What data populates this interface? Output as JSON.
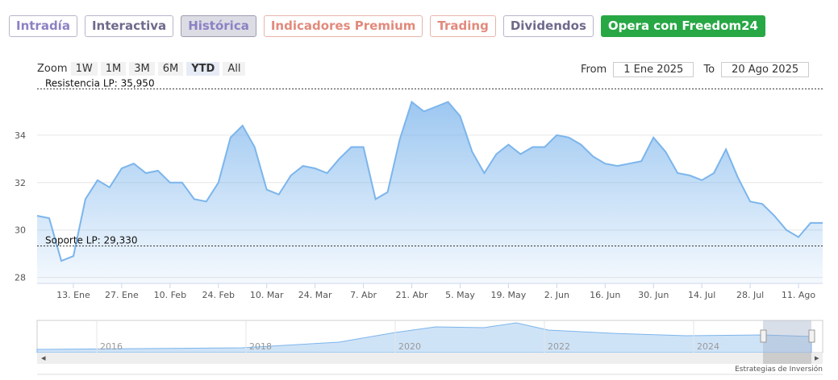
{
  "tabs": [
    "Intradía",
    "Interactiva",
    "Histórica",
    "Indicadores Premium",
    "Trading",
    "Dividendos",
    "Opera con Freedom24"
  ],
  "range_selector": {
    "zoom_label": "Zoom",
    "buttons": [
      "1W",
      "1M",
      "3M",
      "6M",
      "YTD",
      "All"
    ],
    "from_label": "From",
    "from_value": "1 Ene 2025",
    "to_label": "To",
    "to_value": "20 Ago 2025"
  },
  "chart_data": {
    "type": "area",
    "categories": [
      null,
      null,
      null,
      "13. Ene",
      null,
      null,
      null,
      "27. Ene",
      null,
      null,
      null,
      "10. Feb",
      null,
      null,
      null,
      "24. Feb",
      null,
      null,
      null,
      "10. Mar",
      null,
      null,
      null,
      "24. Mar",
      null,
      null,
      null,
      "7. Abr",
      null,
      null,
      null,
      "21. Abr",
      null,
      null,
      null,
      "5. May",
      null,
      null,
      null,
      "19. May",
      null,
      null,
      null,
      "2. Jun",
      null,
      null,
      null,
      "16. Jun",
      null,
      null,
      null,
      "30. Jun",
      null,
      null,
      null,
      "14. Jul",
      null,
      null,
      null,
      "28. Jul",
      null,
      null,
      null,
      "11. Ago",
      null,
      null
    ],
    "values": [
      30.6,
      30.5,
      28.7,
      28.9,
      31.3,
      32.1,
      31.8,
      32.6,
      32.8,
      32.4,
      32.5,
      32.0,
      32.0,
      31.3,
      31.2,
      32.0,
      33.9,
      34.4,
      33.5,
      31.7,
      31.5,
      32.3,
      32.7,
      32.6,
      32.4,
      33.0,
      33.5,
      33.5,
      31.3,
      31.6,
      33.8,
      35.4,
      35.0,
      35.2,
      35.4,
      34.8,
      33.3,
      32.4,
      33.2,
      33.6,
      33.2,
      33.5,
      33.5,
      34.0,
      33.9,
      33.6,
      33.1,
      32.8,
      32.7,
      32.8,
      32.9,
      33.9,
      33.3,
      32.4,
      32.3,
      32.1,
      32.4,
      33.4,
      32.2,
      31.2,
      31.1,
      30.6,
      30.0,
      29.7,
      30.3,
      30.3
    ],
    "color": "#7cb5ec",
    "ylim": [
      27.75,
      36.2
    ],
    "yticks": [
      28,
      30,
      32,
      34
    ],
    "grid": true,
    "annotations": [
      {
        "label": "Resistencia LP: 35,950",
        "value": 35.95
      },
      {
        "label": "Soporte LP: 29,330",
        "value": 29.33
      }
    ]
  },
  "navigator": {
    "years": [
      "2016",
      "2018",
      "2020",
      "2022",
      "2024"
    ]
  },
  "credit": "Estrategias de Inversión"
}
